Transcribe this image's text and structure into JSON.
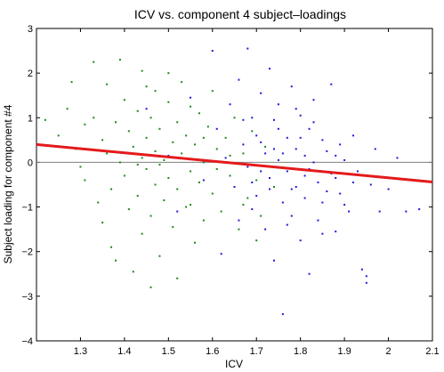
{
  "chart_data": {
    "type": "scatter",
    "title": "ICV vs. component 4 subject–loadings",
    "xlabel": "ICV",
    "ylabel": "Subject loading for component #4",
    "xlim": [
      1.2,
      2.1
    ],
    "ylim": [
      -4,
      3
    ],
    "xticks": [
      "1.3",
      "1.4",
      "1.5",
      "1.6",
      "1.7",
      "1.8",
      "1.9",
      "2",
      "2.1"
    ],
    "yticks": [
      "3",
      "2",
      "1",
      "0",
      "−1",
      "−2",
      "−3",
      "−4"
    ],
    "grid": false,
    "legend": "none",
    "reference_line": {
      "y": 0,
      "color": "#808080"
    },
    "fit_line": {
      "x": [
        1.2,
        2.1
      ],
      "y": [
        0.4,
        -0.44
      ],
      "color": "#e31a1c"
    },
    "series": [
      {
        "color": "#1a8a1a",
        "points": [
          [
            1.22,
            0.95
          ],
          [
            1.25,
            0.6
          ],
          [
            1.27,
            1.2
          ],
          [
            1.28,
            1.8
          ],
          [
            1.29,
            0.3
          ],
          [
            1.3,
            -0.1
          ],
          [
            1.31,
            0.85
          ],
          [
            1.31,
            -0.4
          ],
          [
            1.33,
            2.25
          ],
          [
            1.33,
            1.0
          ],
          [
            1.34,
            -0.9
          ],
          [
            1.35,
            0.5
          ],
          [
            1.35,
            -1.35
          ],
          [
            1.36,
            1.75
          ],
          [
            1.36,
            0.2
          ],
          [
            1.37,
            -0.6
          ],
          [
            1.37,
            -1.9
          ],
          [
            1.38,
            0.9
          ],
          [
            1.38,
            -2.2
          ],
          [
            1.39,
            2.3
          ],
          [
            1.39,
            0.0
          ],
          [
            1.4,
            1.4
          ],
          [
            1.4,
            -0.3
          ],
          [
            1.41,
            -1.05
          ],
          [
            1.41,
            0.7
          ],
          [
            1.42,
            -2.45
          ],
          [
            1.42,
            0.35
          ],
          [
            1.43,
            1.15
          ],
          [
            1.43,
            -0.75
          ],
          [
            1.44,
            0.1
          ],
          [
            1.44,
            2.05
          ],
          [
            1.44,
            -1.6
          ],
          [
            1.45,
            0.55
          ],
          [
            1.45,
            -0.15
          ],
          [
            1.46,
            1.0
          ],
          [
            1.46,
            -1.2
          ],
          [
            1.47,
            0.25
          ],
          [
            1.47,
            -0.5
          ],
          [
            1.47,
            1.6
          ],
          [
            1.48,
            -2.1
          ],
          [
            1.48,
            0.75
          ],
          [
            1.49,
            -0.85
          ],
          [
            1.49,
            0.05
          ],
          [
            1.5,
            1.35
          ],
          [
            1.5,
            -0.35
          ],
          [
            1.5,
            2.0
          ],
          [
            1.51,
            -1.45
          ],
          [
            1.51,
            0.45
          ],
          [
            1.52,
            -0.6
          ],
          [
            1.52,
            0.9
          ],
          [
            1.52,
            -2.6
          ],
          [
            1.53,
            0.2
          ],
          [
            1.53,
            1.8
          ],
          [
            1.54,
            -1.0
          ],
          [
            1.54,
            0.6
          ],
          [
            1.55,
            -0.2
          ],
          [
            1.55,
            1.25
          ],
          [
            1.56,
            -1.8
          ],
          [
            1.56,
            0.4
          ],
          [
            1.57,
            -0.45
          ],
          [
            1.57,
            1.1
          ],
          [
            1.58,
            0.0
          ],
          [
            1.58,
            -1.3
          ],
          [
            1.59,
            0.8
          ],
          [
            1.6,
            -0.7
          ],
          [
            1.6,
            1.6
          ],
          [
            1.61,
            0.3
          ],
          [
            1.62,
            -1.1
          ],
          [
            1.63,
            0.55
          ],
          [
            1.64,
            -0.3
          ],
          [
            1.65,
            1.0
          ],
          [
            1.66,
            -1.5
          ],
          [
            1.67,
            0.2
          ],
          [
            1.68,
            -0.8
          ],
          [
            1.69,
            0.7
          ],
          [
            1.7,
            -0.4
          ],
          [
            1.71,
            -1.2
          ],
          [
            1.72,
            0.35
          ],
          [
            1.74,
            -0.55
          ],
          [
            1.46,
            -2.8
          ],
          [
            1.43,
            -0.05
          ],
          [
            1.45,
            1.7
          ],
          [
            1.48,
            -0.05
          ],
          [
            1.52,
            0.1
          ],
          [
            1.55,
            -0.95
          ],
          [
            1.58,
            0.55
          ],
          [
            1.61,
            -0.15
          ],
          [
            1.64,
            0.15
          ],
          [
            1.67,
            -0.95
          ],
          [
            1.7,
            -1.75
          ]
        ]
      },
      {
        "color": "#1a1ae0",
        "points": [
          [
            1.45,
            1.2
          ],
          [
            1.5,
            0.15
          ],
          [
            1.52,
            -1.1
          ],
          [
            1.55,
            1.45
          ],
          [
            1.58,
            -0.4
          ],
          [
            1.6,
            2.5
          ],
          [
            1.61,
            0.75
          ],
          [
            1.62,
            -2.05
          ],
          [
            1.63,
            0.1
          ],
          [
            1.64,
            1.3
          ],
          [
            1.65,
            -0.55
          ],
          [
            1.66,
            1.85
          ],
          [
            1.66,
            -1.3
          ],
          [
            1.67,
            0.4
          ],
          [
            1.68,
            -0.1
          ],
          [
            1.68,
            2.55
          ],
          [
            1.69,
            1.0
          ],
          [
            1.7,
            -0.75
          ],
          [
            1.7,
            0.6
          ],
          [
            1.71,
            1.55
          ],
          [
            1.72,
            -1.5
          ],
          [
            1.72,
            0.2
          ],
          [
            1.73,
            2.1
          ],
          [
            1.73,
            -0.35
          ],
          [
            1.74,
            0.95
          ],
          [
            1.74,
            -2.2
          ],
          [
            1.75,
            0.05
          ],
          [
            1.75,
            1.3
          ],
          [
            1.76,
            -0.9
          ],
          [
            1.76,
            -3.4
          ],
          [
            1.77,
            0.55
          ],
          [
            1.77,
            -0.2
          ],
          [
            1.78,
            1.7
          ],
          [
            1.78,
            -1.2
          ],
          [
            1.79,
            0.3
          ],
          [
            1.79,
            -0.55
          ],
          [
            1.8,
            1.05
          ],
          [
            1.8,
            -1.75
          ],
          [
            1.81,
            0.15
          ],
          [
            1.81,
            -0.8
          ],
          [
            1.82,
            0.75
          ],
          [
            1.82,
            -2.5
          ],
          [
            1.83,
            0.0
          ],
          [
            1.83,
            1.4
          ],
          [
            1.84,
            -0.45
          ],
          [
            1.84,
            -1.3
          ],
          [
            1.85,
            0.5
          ],
          [
            1.85,
            -0.9
          ],
          [
            1.86,
            0.25
          ],
          [
            1.87,
            -0.25
          ],
          [
            1.87,
            1.75
          ],
          [
            1.88,
            -1.55
          ],
          [
            1.89,
            0.4
          ],
          [
            1.89,
            -0.7
          ],
          [
            1.9,
            0.05
          ],
          [
            1.91,
            -1.1
          ],
          [
            1.92,
            0.6
          ],
          [
            1.93,
            -0.2
          ],
          [
            1.94,
            -2.4
          ],
          [
            1.95,
            -2.55
          ],
          [
            1.95,
            -2.7
          ],
          [
            1.96,
            -0.5
          ],
          [
            1.97,
            0.3
          ],
          [
            1.98,
            -1.1
          ],
          [
            2.0,
            -0.6
          ],
          [
            2.02,
            0.1
          ],
          [
            2.04,
            -1.1
          ],
          [
            2.07,
            -1.05
          ],
          [
            1.69,
            -1.05
          ],
          [
            1.71,
            0.45
          ],
          [
            1.73,
            -0.6
          ],
          [
            1.75,
            0.75
          ],
          [
            1.77,
            -1.4
          ],
          [
            1.79,
            1.2
          ],
          [
            1.81,
            -0.3
          ],
          [
            1.83,
            0.9
          ],
          [
            1.85,
            -1.6
          ],
          [
            1.88,
            0.15
          ],
          [
            1.9,
            -0.95
          ],
          [
            1.92,
            -0.45
          ],
          [
            1.67,
            0.95
          ],
          [
            1.69,
            -0.45
          ],
          [
            1.71,
            -0.2
          ],
          [
            1.74,
            0.3
          ],
          [
            1.76,
            0.2
          ],
          [
            1.78,
            -0.6
          ],
          [
            1.8,
            0.55
          ],
          [
            1.82,
            -0.15
          ],
          [
            1.86,
            -0.65
          ],
          [
            1.88,
            -0.35
          ]
        ]
      }
    ]
  }
}
